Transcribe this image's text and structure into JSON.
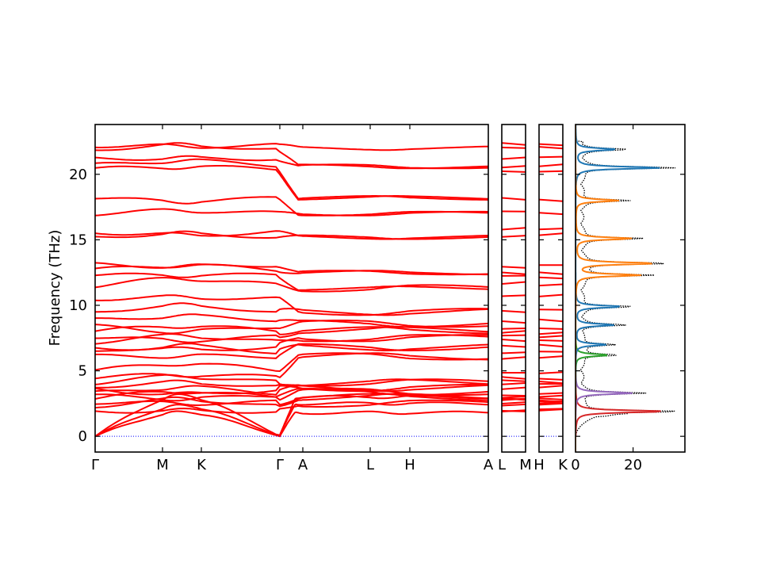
{
  "chart_data": {
    "type": "line",
    "ylabel": "Frequency (THz)",
    "ylim": [
      -1.2,
      23.8
    ],
    "yticks": [
      0,
      5,
      10,
      15,
      20
    ],
    "grid": false,
    "colors": {
      "bands": "#ff0000",
      "zero_line": "#0000ff",
      "dos_total": "#000000",
      "pdos": [
        "#1f77b4",
        "#ff7f0e",
        "#2ca02c",
        "#d62728",
        "#9467bd"
      ]
    },
    "band_panels": [
      {
        "xticks": [
          "Γ",
          "M",
          "K",
          "Γ",
          "A",
          "L",
          "H",
          "A"
        ]
      },
      {
        "xticks": [
          "L",
          "M"
        ]
      },
      {
        "xticks": [
          "H",
          "K"
        ]
      }
    ],
    "dos_panel": {
      "xticks": [
        "0",
        "20"
      ],
      "xlim": [
        0,
        38
      ]
    },
    "gamma_frequencies": [
      0,
      0,
      0,
      1.9,
      2.3,
      2.6,
      2.9,
      3.1,
      3.3,
      3.6,
      3.8,
      4.1,
      4.5,
      5.0,
      6.1,
      6.4,
      6.8,
      7.2,
      7.6,
      8.0,
      8.4,
      8.9,
      9.5,
      10.5,
      11.5,
      12.3,
      12.7,
      13.1,
      15.2,
      15.6,
      17.0,
      18.2,
      20.4,
      20.7,
      21.2,
      21.9,
      22.2
    ],
    "a_frequencies": [
      1.8,
      2.5,
      3.0,
      3.4,
      3.7,
      4.1,
      6.1,
      6.8,
      7.5,
      8.1,
      8.6,
      9.5,
      11.3,
      12.5,
      15.2,
      17.0,
      18.2,
      20.6,
      22.0
    ],
    "dos_peaks": [
      {
        "freq": 1.9,
        "value": 35.0,
        "color": "#d62728"
      },
      {
        "freq": 3.3,
        "value": 22.0,
        "color": "#9467bd"
      },
      {
        "freq": 6.2,
        "value": 13.0,
        "color": "#2ca02c"
      },
      {
        "freq": 7.0,
        "value": 12.0,
        "color": "#1f77b4"
      },
      {
        "freq": 8.5,
        "value": 15.0,
        "color": "#1f77b4"
      },
      {
        "freq": 9.9,
        "value": 18.0,
        "color": "#1f77b4"
      },
      {
        "freq": 12.3,
        "value": 25.0,
        "color": "#ff7f0e"
      },
      {
        "freq": 13.2,
        "value": 31.0,
        "color": "#ff7f0e"
      },
      {
        "freq": 15.1,
        "value": 22.0,
        "color": "#ff7f0e"
      },
      {
        "freq": 18.0,
        "value": 17.0,
        "color": "#ff7f0e"
      },
      {
        "freq": 20.5,
        "value": 33.0,
        "color": "#1f77b4"
      },
      {
        "freq": 21.9,
        "value": 16.0,
        "color": "#1f77b4"
      }
    ]
  }
}
